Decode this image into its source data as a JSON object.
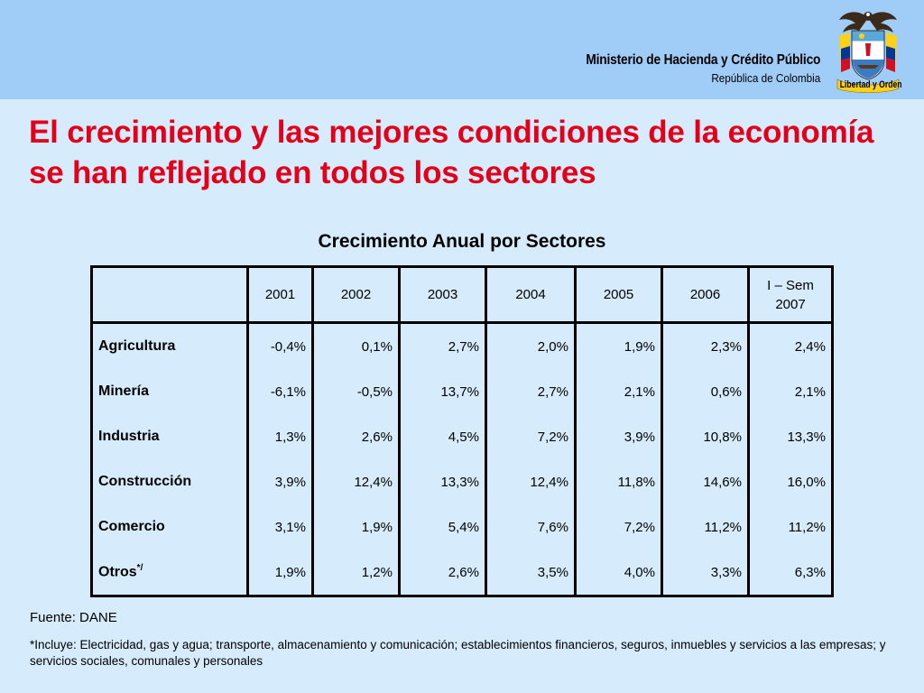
{
  "header": {
    "ministry": "Ministerio de Hacienda y Crédito Público",
    "country": "República de Colombia",
    "emblem_icon": "colombia-coat-of-arms-icon",
    "emblem_caption": "Libertad y Orden",
    "background_color": "#9fcdf7"
  },
  "slide": {
    "title": "El crecimiento y las mejores condiciones de la economía se han reflejado en todos los sectores",
    "title_color": "#e2001a",
    "background_color": "#d6ebfb"
  },
  "table": {
    "title": "Crecimiento Anual por Sectores",
    "columns": [
      "",
      "2001",
      "2002",
      "2003",
      "2004",
      "2005",
      "2006",
      "I – Sem 2007"
    ],
    "rows": [
      {
        "sector": "Agricultura",
        "note": "",
        "values": [
          "-0,4%",
          "0,1%",
          "2,7%",
          "2,0%",
          "1,9%",
          "2,3%",
          "2,4%"
        ]
      },
      {
        "sector": "Minería",
        "note": "",
        "values": [
          "-6,1%",
          "-0,5%",
          "13,7%",
          "2,7%",
          "2,1%",
          "0,6%",
          "2,1%"
        ]
      },
      {
        "sector": "Industria",
        "note": "",
        "values": [
          "1,3%",
          "2,6%",
          "4,5%",
          "7,2%",
          "3,9%",
          "10,8%",
          "13,3%"
        ]
      },
      {
        "sector": "Construcción",
        "note": "",
        "values": [
          "3,9%",
          "12,4%",
          "13,3%",
          "12,4%",
          "11,8%",
          "14,6%",
          "16,0%"
        ]
      },
      {
        "sector": "Comercio",
        "note": "",
        "values": [
          "3,1%",
          "1,9%",
          "5,4%",
          "7,6%",
          "7,2%",
          "11,2%",
          "11,2%"
        ]
      },
      {
        "sector": "Otros",
        "note": "*/",
        "values": [
          "1,9%",
          "1,2%",
          "2,6%",
          "3,5%",
          "4,0%",
          "3,3%",
          "6,3%"
        ]
      }
    ]
  },
  "footer": {
    "source": "Fuente: DANE",
    "footnote": "*Incluye: Electricidad, gas y agua; transporte, almacenamiento y comunicación; establecimientos financieros, seguros, inmuebles y servicios a las empresas; y servicios sociales, comunales y personales"
  }
}
